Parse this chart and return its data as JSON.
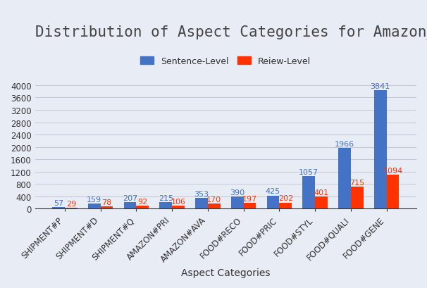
{
  "title": "Distribution of Aspect Categories for Amazon_FF",
  "xlabel": "Aspect Categories",
  "categories": [
    "SHIPMENT#P",
    "SHIPMENT#D",
    "SHIPMENT#Q",
    "AMAZON#PRI",
    "AMAZON#AVA",
    "FOOD#RECO",
    "FOOD#PRIC",
    "FOOD#STYL",
    "FOOD#QUALI",
    "FOOD#GENE"
  ],
  "sentence_values": [
    57,
    159,
    207,
    215,
    353,
    390,
    425,
    1057,
    1966,
    3841
  ],
  "review_values": [
    29,
    78,
    92,
    106,
    170,
    197,
    202,
    401,
    715,
    1094
  ],
  "bar_color_sentence": "#4472C4",
  "bar_color_review": "#FF3300",
  "legend_labels": [
    "Sentence-Level",
    "Reiew-Level"
  ],
  "background_color": "#E8ECF5",
  "grid_color": "#C8C8D8",
  "ylim": [
    0,
    4400
  ],
  "yticks": [
    0,
    400,
    800,
    1200,
    1600,
    2000,
    2400,
    2800,
    3200,
    3600,
    4000
  ],
  "title_fontsize": 15,
  "label_fontsize": 8,
  "tick_fontsize": 8.5,
  "xlabel_fontsize": 10,
  "bar_width": 0.35
}
